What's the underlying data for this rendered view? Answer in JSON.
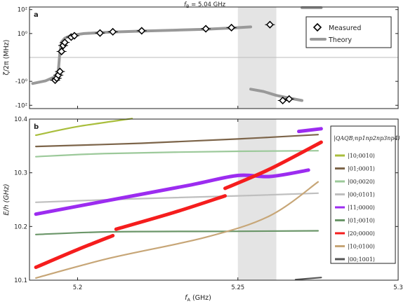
{
  "chart_data": [
    {
      "type": "scatter",
      "panel_label": "a",
      "title": "f_B = 5.04 GHz",
      "title_main": "f",
      "title_sub": "B",
      "title_rest": " = 5.04 GHz",
      "ylabel": "ζ/2π (MHz)",
      "yscale": "symlog",
      "yticks": [
        {
          "v": 100,
          "t": "10²"
        },
        {
          "v": 1,
          "t": "10⁰"
        },
        {
          "v": -1,
          "t": "-10⁰"
        },
        {
          "v": -100,
          "t": "-10²"
        }
      ],
      "xlim": [
        5.185,
        5.3
      ],
      "legend": {
        "position": "top-right",
        "items": [
          {
            "label": "Measured"
          },
          {
            "label": "Theory"
          }
        ]
      },
      "shaded_region": [
        5.25,
        5.262
      ],
      "measured": [
        {
          "x": 5.193,
          "y": -0.8
        },
        {
          "x": 5.1935,
          "y": -0.55
        },
        {
          "x": 5.194,
          "y": -0.3
        },
        {
          "x": 5.1945,
          "y": -0.15
        },
        {
          "x": 5.195,
          "y": 0.05
        },
        {
          "x": 5.1955,
          "y": 0.1
        },
        {
          "x": 5.196,
          "y": 0.18
        },
        {
          "x": 5.198,
          "y": 0.5
        },
        {
          "x": 5.199,
          "y": 0.65
        },
        {
          "x": 5.207,
          "y": 1.1
        },
        {
          "x": 5.211,
          "y": 1.4
        },
        {
          "x": 5.22,
          "y": 1.7
        },
        {
          "x": 5.24,
          "y": 2.5
        },
        {
          "x": 5.248,
          "y": 3.1
        },
        {
          "x": 5.26,
          "y": 5.5
        },
        {
          "x": 5.264,
          "y": -40
        },
        {
          "x": 5.266,
          "y": -30
        }
      ],
      "theory": [
        {
          "x": 5.186,
          "y": -1.5
        },
        {
          "x": 5.19,
          "y": -0.9
        },
        {
          "x": 5.193,
          "y": -0.4
        },
        {
          "x": 5.194,
          "y": -0.12
        },
        {
          "x": 5.1945,
          "y": 0.05
        },
        {
          "x": 5.195,
          "y": 0.2
        },
        {
          "x": 5.196,
          "y": 0.4
        },
        {
          "x": 5.198,
          "y": 0.7
        },
        {
          "x": 5.202,
          "y": 1.0
        },
        {
          "x": 5.21,
          "y": 1.3
        },
        {
          "x": 5.22,
          "y": 1.6
        },
        {
          "x": 5.23,
          "y": 1.9
        },
        {
          "x": 5.24,
          "y": 2.3
        },
        {
          "x": 5.25,
          "y": 3.1
        },
        {
          "x": 5.254,
          "y": 3.6
        }
      ],
      "theory_branch2": [
        {
          "x": 5.254,
          "y": -4.5
        },
        {
          "x": 5.258,
          "y": -7
        },
        {
          "x": 5.262,
          "y": -15
        },
        {
          "x": 5.266,
          "y": -25
        },
        {
          "x": 5.27,
          "y": -40
        }
      ],
      "theory_branch3": [
        {
          "x": 5.27,
          "y": 500
        },
        {
          "x": 5.276,
          "y": 500
        }
      ]
    },
    {
      "type": "line",
      "panel_label": "b",
      "xlabel": "f",
      "xlabel_sub": "A",
      "xlabel_rest": " (GHz)",
      "ylabel": "E/h (GHz)",
      "xlim": [
        5.185,
        5.3
      ],
      "ylim": [
        10.1,
        10.4
      ],
      "xticks": [
        {
          "v": 5.2,
          "t": "5.2"
        },
        {
          "v": 5.25,
          "t": "5.25"
        },
        {
          "v": 5.3,
          "t": "5.3"
        }
      ],
      "yticks": [
        {
          "v": 10.1,
          "t": "10.1"
        },
        {
          "v": 10.2,
          "t": "10.2"
        },
        {
          "v": 10.3,
          "t": "10.3"
        },
        {
          "v": 10.4,
          "t": "10.4"
        }
      ],
      "shaded_region": [
        5.25,
        5.262
      ],
      "legend": {
        "position": "right",
        "header": "|Q_A Q_B; n_p1 n_p2 n_p3 n_p4⟩",
        "header_text": "|QAQB;np1np2np3np4⟩",
        "items": [
          {
            "label": "|10;0010⟩",
            "color": "#a9be3c"
          },
          {
            "label": "|01;0001⟩",
            "color": "#7c6449"
          },
          {
            "label": "|00;0020⟩",
            "color": "#9cc99a"
          },
          {
            "label": "|00;0101⟩",
            "color": "#bfbfbf"
          },
          {
            "label": "|11;0000⟩",
            "color": "#9c2cf0"
          },
          {
            "label": "|01;0010⟩",
            "color": "#6b9669"
          },
          {
            "label": "|20;0000⟩",
            "color": "#f51d1d"
          },
          {
            "label": "|10;0100⟩",
            "color": "#c7a677"
          },
          {
            "label": "|00;1001⟩",
            "color": "#555555"
          }
        ]
      },
      "series": [
        {
          "name": "|10;0010⟩",
          "color": "#a9be3c",
          "width": 2.2,
          "x": [
            5.187,
            5.2,
            5.217
          ],
          "y": [
            10.37,
            10.386,
            10.401
          ]
        },
        {
          "name": "|01;0001⟩",
          "color": "#7c6449",
          "width": 2.2,
          "x": [
            5.187,
            5.22,
            5.25,
            5.275
          ],
          "y": [
            10.349,
            10.355,
            10.363,
            10.371
          ]
        },
        {
          "name": "|00;0020⟩",
          "color": "#9cc99a",
          "width": 2.2,
          "x": [
            5.187,
            5.21,
            5.25,
            5.275
          ],
          "y": [
            10.33,
            10.336,
            10.34,
            10.341
          ]
        },
        {
          "name": "|00;0101⟩",
          "color": "#bfbfbf",
          "width": 2.2,
          "x": [
            5.187,
            5.22,
            5.25,
            5.275
          ],
          "y": [
            10.245,
            10.252,
            10.257,
            10.262
          ]
        },
        {
          "name": "|11;0000⟩",
          "color": "#9c2cf0",
          "width": 5,
          "x": [
            5.187,
            5.21,
            5.235,
            5.25,
            5.26,
            5.272
          ],
          "y": [
            10.223,
            10.249,
            10.277,
            10.295,
            10.293,
            10.305
          ]
        },
        {
          "name": "|11;0000⟩ upper",
          "color": "#9c2cf0",
          "width": 5,
          "x": [
            5.269,
            5.276
          ],
          "y": [
            10.377,
            10.382
          ]
        },
        {
          "name": "|01;0010⟩",
          "color": "#6b9669",
          "width": 2.2,
          "x": [
            5.187,
            5.21,
            5.25,
            5.275
          ],
          "y": [
            10.185,
            10.19,
            10.191,
            10.192
          ]
        },
        {
          "name": "|20;0000⟩",
          "color": "#f51d1d",
          "width": 5,
          "x": [
            5.187,
            5.2,
            5.211
          ],
          "y": [
            10.124,
            10.157,
            10.183
          ]
        },
        {
          "name": "|20;0000⟩ middle",
          "color": "#f51d1d",
          "width": 5,
          "x": [
            5.212,
            5.23,
            5.246
          ],
          "y": [
            10.195,
            10.226,
            10.257
          ]
        },
        {
          "name": "|20;0000⟩ upper",
          "color": "#f51d1d",
          "width": 5,
          "x": [
            5.246,
            5.26,
            5.276
          ],
          "y": [
            10.271,
            10.307,
            10.357
          ]
        },
        {
          "name": "|10;0100⟩",
          "color": "#c7a677",
          "width": 2.2,
          "x": [
            5.187,
            5.21,
            5.24,
            5.26,
            5.275
          ],
          "y": [
            10.104,
            10.141,
            10.18,
            10.22,
            10.283
          ]
        },
        {
          "name": "|00;1001⟩",
          "color": "#555555",
          "width": 2.2,
          "x": [
            5.268,
            5.276
          ],
          "y": [
            10.101,
            10.105
          ]
        }
      ]
    }
  ]
}
